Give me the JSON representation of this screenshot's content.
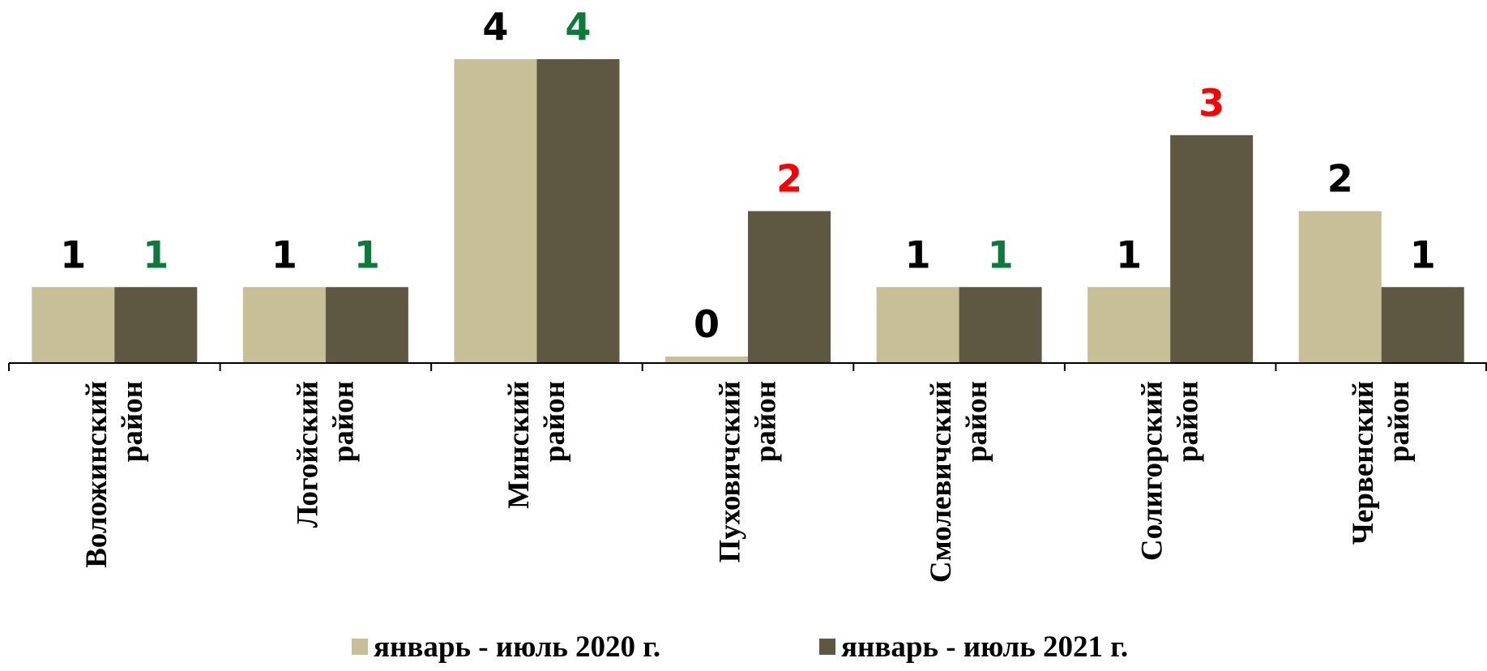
{
  "chart_data": {
    "type": "bar",
    "categories": [
      [
        "Воложинский",
        "район"
      ],
      [
        "Логойский",
        "район"
      ],
      [
        "Минский",
        "район"
      ],
      [
        "Пуховичский",
        "район"
      ],
      [
        "Смолевичский",
        "район"
      ],
      [
        "Солигорский",
        "район"
      ],
      [
        "Червенский",
        "район"
      ]
    ],
    "series": [
      {
        "name": "январь - июль 2020 г.",
        "color": "#c6bf98",
        "values": [
          1,
          1,
          4,
          0,
          1,
          1,
          2
        ],
        "label_colors": [
          "#000000",
          "#000000",
          "#000000",
          "#000000",
          "#000000",
          "#000000",
          "#000000"
        ]
      },
      {
        "name": "январь - июль 2021 г.",
        "color": "#5e5842",
        "values": [
          1,
          1,
          4,
          2,
          1,
          3,
          1
        ],
        "label_colors": [
          "#0b7a3a",
          "#0b7a3a",
          "#0b7a3a",
          "#ff0000",
          "#0b7a3a",
          "#ff0000",
          "#000000"
        ]
      }
    ],
    "ylim": [
      0,
      4
    ],
    "grid": false,
    "legend_position": "bottom"
  }
}
